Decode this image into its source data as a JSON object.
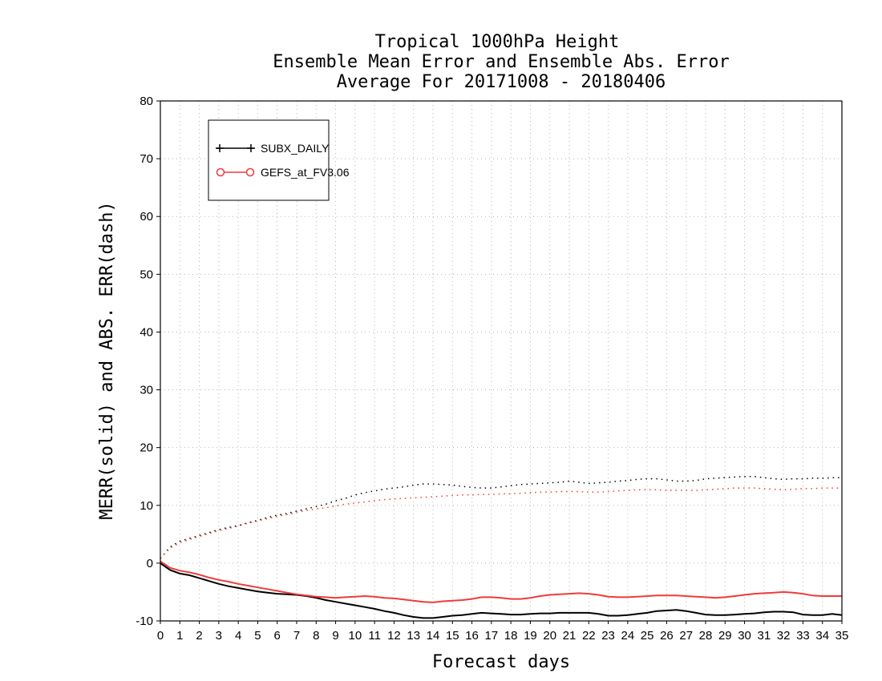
{
  "chart_data": {
    "type": "line",
    "title": [
      "Tropical 1000hPa Height",
      "Ensemble Mean Error and Ensemble Abs. Error",
      "Average For 20171008 - 20180406"
    ],
    "xlabel": "Forecast days",
    "ylabel": "MERR(solid) and ABS. ERR(dash)",
    "xlim": [
      0,
      35
    ],
    "ylim": [
      -10,
      80
    ],
    "xticks": [
      0,
      1,
      2,
      3,
      4,
      5,
      6,
      7,
      8,
      9,
      10,
      11,
      12,
      13,
      14,
      15,
      16,
      17,
      18,
      19,
      20,
      21,
      22,
      23,
      24,
      25,
      26,
      27,
      28,
      29,
      30,
      31,
      32,
      33,
      34,
      35
    ],
    "yticks": [
      -10,
      0,
      10,
      20,
      30,
      40,
      50,
      60,
      70,
      80
    ],
    "grid": true,
    "legend_position": "top-left",
    "series": [
      {
        "name": "SUBX_DAILY",
        "color": "#000000",
        "marker": "plus",
        "merr": [
          [
            0,
            0
          ],
          [
            0.5,
            -1.2
          ],
          [
            1,
            -1.8
          ],
          [
            1.5,
            -2.1
          ],
          [
            2,
            -2.6
          ],
          [
            2.5,
            -3.1
          ],
          [
            3,
            -3.6
          ],
          [
            3.5,
            -4.0
          ],
          [
            4,
            -4.3
          ],
          [
            4.5,
            -4.6
          ],
          [
            5,
            -4.9
          ],
          [
            5.5,
            -5.1
          ],
          [
            6,
            -5.3
          ],
          [
            6.5,
            -5.4
          ],
          [
            7,
            -5.5
          ],
          [
            7.5,
            -5.7
          ],
          [
            8,
            -6.0
          ],
          [
            8.5,
            -6.4
          ],
          [
            9,
            -6.7
          ],
          [
            9.5,
            -7.0
          ],
          [
            10,
            -7.3
          ],
          [
            10.5,
            -7.6
          ],
          [
            11,
            -7.9
          ],
          [
            11.5,
            -8.3
          ],
          [
            12,
            -8.6
          ],
          [
            12.5,
            -9.0
          ],
          [
            13,
            -9.3
          ],
          [
            13.5,
            -9.5
          ],
          [
            14,
            -9.5
          ],
          [
            14.5,
            -9.3
          ],
          [
            15,
            -9.1
          ],
          [
            15.5,
            -9.0
          ],
          [
            16,
            -8.8
          ],
          [
            16.5,
            -8.6
          ],
          [
            17,
            -8.7
          ],
          [
            17.5,
            -8.8
          ],
          [
            18,
            -8.9
          ],
          [
            18.5,
            -8.9
          ],
          [
            19,
            -8.8
          ],
          [
            19.5,
            -8.7
          ],
          [
            20,
            -8.7
          ],
          [
            20.5,
            -8.6
          ],
          [
            21,
            -8.6
          ],
          [
            21.5,
            -8.6
          ],
          [
            22,
            -8.6
          ],
          [
            22.5,
            -8.8
          ],
          [
            23,
            -9.1
          ],
          [
            23.5,
            -9.1
          ],
          [
            24,
            -9.0
          ],
          [
            24.5,
            -8.8
          ],
          [
            25,
            -8.6
          ],
          [
            25.5,
            -8.3
          ],
          [
            26,
            -8.2
          ],
          [
            26.5,
            -8.1
          ],
          [
            27,
            -8.3
          ],
          [
            27.5,
            -8.6
          ],
          [
            28,
            -8.9
          ],
          [
            28.5,
            -9.0
          ],
          [
            29,
            -9.0
          ],
          [
            29.5,
            -8.9
          ],
          [
            30,
            -8.8
          ],
          [
            30.5,
            -8.7
          ],
          [
            31,
            -8.5
          ],
          [
            31.5,
            -8.4
          ],
          [
            32,
            -8.4
          ],
          [
            32.5,
            -8.5
          ],
          [
            33,
            -8.9
          ],
          [
            33.5,
            -9.0
          ],
          [
            34,
            -9.0
          ],
          [
            34.5,
            -8.8
          ],
          [
            35,
            -9.0
          ]
        ],
        "abs_err": [
          [
            0,
            0.8
          ],
          [
            0.5,
            2.8
          ],
          [
            1,
            3.8
          ],
          [
            1.5,
            4.3
          ],
          [
            2,
            4.8
          ],
          [
            2.5,
            5.3
          ],
          [
            3,
            5.8
          ],
          [
            3.5,
            6.2
          ],
          [
            4,
            6.5
          ],
          [
            4.5,
            7.0
          ],
          [
            5,
            7.4
          ],
          [
            5.5,
            7.9
          ],
          [
            6,
            8.3
          ],
          [
            6.5,
            8.6
          ],
          [
            7,
            9.0
          ],
          [
            7.5,
            9.4
          ],
          [
            8,
            9.8
          ],
          [
            8.5,
            10.2
          ],
          [
            9,
            10.8
          ],
          [
            9.5,
            11.2
          ],
          [
            10,
            11.8
          ],
          [
            10.5,
            12.2
          ],
          [
            11,
            12.5
          ],
          [
            11.5,
            12.8
          ],
          [
            12,
            13.0
          ],
          [
            12.5,
            13.2
          ],
          [
            13,
            13.5
          ],
          [
            13.5,
            13.7
          ],
          [
            14,
            13.7
          ],
          [
            14.5,
            13.6
          ],
          [
            15,
            13.5
          ],
          [
            15.5,
            13.3
          ],
          [
            16,
            13.1
          ],
          [
            16.5,
            13.0
          ],
          [
            17,
            13.0
          ],
          [
            17.5,
            13.2
          ],
          [
            18,
            13.4
          ],
          [
            18.5,
            13.6
          ],
          [
            19,
            13.7
          ],
          [
            19.5,
            13.8
          ],
          [
            20,
            13.9
          ],
          [
            20.5,
            14.0
          ],
          [
            21,
            14.2
          ],
          [
            21.5,
            14.0
          ],
          [
            22,
            13.8
          ],
          [
            22.5,
            13.9
          ],
          [
            23,
            14.0
          ],
          [
            23.5,
            14.2
          ],
          [
            24,
            14.3
          ],
          [
            24.5,
            14.5
          ],
          [
            25,
            14.6
          ],
          [
            25.5,
            14.6
          ],
          [
            26,
            14.4
          ],
          [
            26.5,
            14.2
          ],
          [
            27,
            14.2
          ],
          [
            27.5,
            14.3
          ],
          [
            28,
            14.6
          ],
          [
            28.5,
            14.7
          ],
          [
            29,
            14.8
          ],
          [
            29.5,
            14.9
          ],
          [
            30,
            15.0
          ],
          [
            30.5,
            15.0
          ],
          [
            31,
            14.8
          ],
          [
            31.5,
            14.6
          ],
          [
            32,
            14.5
          ],
          [
            32.5,
            14.6
          ],
          [
            33,
            14.6
          ],
          [
            33.5,
            14.7
          ],
          [
            34,
            14.7
          ],
          [
            34.5,
            14.8
          ],
          [
            35,
            14.8
          ]
        ]
      },
      {
        "name": "GEFS_at_FV3.06",
        "color": "#ef3b3b",
        "marker": "circle",
        "merr": [
          [
            0,
            0.3
          ],
          [
            0.5,
            -0.8
          ],
          [
            1,
            -1.3
          ],
          [
            1.5,
            -1.6
          ],
          [
            2,
            -2.0
          ],
          [
            2.5,
            -2.5
          ],
          [
            3,
            -2.9
          ],
          [
            3.5,
            -3.2
          ],
          [
            4,
            -3.6
          ],
          [
            4.5,
            -3.9
          ],
          [
            5,
            -4.2
          ],
          [
            5.5,
            -4.5
          ],
          [
            6,
            -4.8
          ],
          [
            6.5,
            -5.1
          ],
          [
            7,
            -5.4
          ],
          [
            7.5,
            -5.6
          ],
          [
            8,
            -5.8
          ],
          [
            8.5,
            -5.9
          ],
          [
            9,
            -6.0
          ],
          [
            9.5,
            -5.9
          ],
          [
            10,
            -5.8
          ],
          [
            10.5,
            -5.7
          ],
          [
            11,
            -5.8
          ],
          [
            11.5,
            -6.0
          ],
          [
            12,
            -6.1
          ],
          [
            12.5,
            -6.3
          ],
          [
            13,
            -6.5
          ],
          [
            13.5,
            -6.7
          ],
          [
            14,
            -6.8
          ],
          [
            14.5,
            -6.6
          ],
          [
            15,
            -6.5
          ],
          [
            15.5,
            -6.4
          ],
          [
            16,
            -6.2
          ],
          [
            16.5,
            -5.9
          ],
          [
            17,
            -5.9
          ],
          [
            17.5,
            -6.0
          ],
          [
            18,
            -6.2
          ],
          [
            18.5,
            -6.2
          ],
          [
            19,
            -6.0
          ],
          [
            19.5,
            -5.7
          ],
          [
            20,
            -5.5
          ],
          [
            20.5,
            -5.4
          ],
          [
            21,
            -5.3
          ],
          [
            21.5,
            -5.2
          ],
          [
            22,
            -5.3
          ],
          [
            22.5,
            -5.5
          ],
          [
            23,
            -5.8
          ],
          [
            23.5,
            -5.9
          ],
          [
            24,
            -5.9
          ],
          [
            24.5,
            -5.8
          ],
          [
            25,
            -5.7
          ],
          [
            25.5,
            -5.6
          ],
          [
            26,
            -5.6
          ],
          [
            26.5,
            -5.6
          ],
          [
            27,
            -5.7
          ],
          [
            27.5,
            -5.8
          ],
          [
            28,
            -5.9
          ],
          [
            28.5,
            -6.0
          ],
          [
            29,
            -5.9
          ],
          [
            29.5,
            -5.7
          ],
          [
            30,
            -5.5
          ],
          [
            30.5,
            -5.3
          ],
          [
            31,
            -5.2
          ],
          [
            31.5,
            -5.1
          ],
          [
            32,
            -5.0
          ],
          [
            32.5,
            -5.1
          ],
          [
            33,
            -5.3
          ],
          [
            33.5,
            -5.6
          ],
          [
            34,
            -5.7
          ],
          [
            34.5,
            -5.7
          ],
          [
            35,
            -5.7
          ]
        ],
        "abs_err": [
          [
            0,
            0.8
          ],
          [
            0.5,
            2.6
          ],
          [
            1,
            3.5
          ],
          [
            1.5,
            4.1
          ],
          [
            2,
            4.6
          ],
          [
            2.5,
            5.1
          ],
          [
            3,
            5.6
          ],
          [
            3.5,
            6.0
          ],
          [
            4,
            6.4
          ],
          [
            4.5,
            6.9
          ],
          [
            5,
            7.3
          ],
          [
            5.5,
            7.7
          ],
          [
            6,
            8.1
          ],
          [
            6.5,
            8.4
          ],
          [
            7,
            8.8
          ],
          [
            7.5,
            9.1
          ],
          [
            8,
            9.4
          ],
          [
            8.5,
            9.6
          ],
          [
            9,
            9.9
          ],
          [
            9.5,
            10.2
          ],
          [
            10,
            10.4
          ],
          [
            10.5,
            10.6
          ],
          [
            11,
            10.8
          ],
          [
            11.5,
            11.0
          ],
          [
            12,
            11.1
          ],
          [
            12.5,
            11.2
          ],
          [
            13,
            11.3
          ],
          [
            13.5,
            11.4
          ],
          [
            14,
            11.5
          ],
          [
            14.5,
            11.6
          ],
          [
            15,
            11.7
          ],
          [
            15.5,
            11.8
          ],
          [
            16,
            11.8
          ],
          [
            16.5,
            11.9
          ],
          [
            17,
            11.9
          ],
          [
            17.5,
            12.0
          ],
          [
            18,
            12.0
          ],
          [
            18.5,
            12.1
          ],
          [
            19,
            12.2
          ],
          [
            19.5,
            12.3
          ],
          [
            20,
            12.3
          ],
          [
            20.5,
            12.4
          ],
          [
            21,
            12.4
          ],
          [
            21.5,
            12.4
          ],
          [
            22,
            12.3
          ],
          [
            22.5,
            12.3
          ],
          [
            23,
            12.4
          ],
          [
            23.5,
            12.5
          ],
          [
            24,
            12.6
          ],
          [
            24.5,
            12.7
          ],
          [
            25,
            12.7
          ],
          [
            25.5,
            12.7
          ],
          [
            26,
            12.6
          ],
          [
            26.5,
            12.6
          ],
          [
            27,
            12.6
          ],
          [
            27.5,
            12.6
          ],
          [
            28,
            12.7
          ],
          [
            28.5,
            12.8
          ],
          [
            29,
            12.9
          ],
          [
            29.5,
            13.0
          ],
          [
            30,
            13.0
          ],
          [
            30.5,
            13.0
          ],
          [
            31,
            12.9
          ],
          [
            31.5,
            12.8
          ],
          [
            32,
            12.7
          ],
          [
            32.5,
            12.8
          ],
          [
            33,
            12.9
          ],
          [
            33.5,
            12.9
          ],
          [
            34,
            13.0
          ],
          [
            34.5,
            13.0
          ],
          [
            35,
            13.0
          ]
        ]
      }
    ]
  }
}
